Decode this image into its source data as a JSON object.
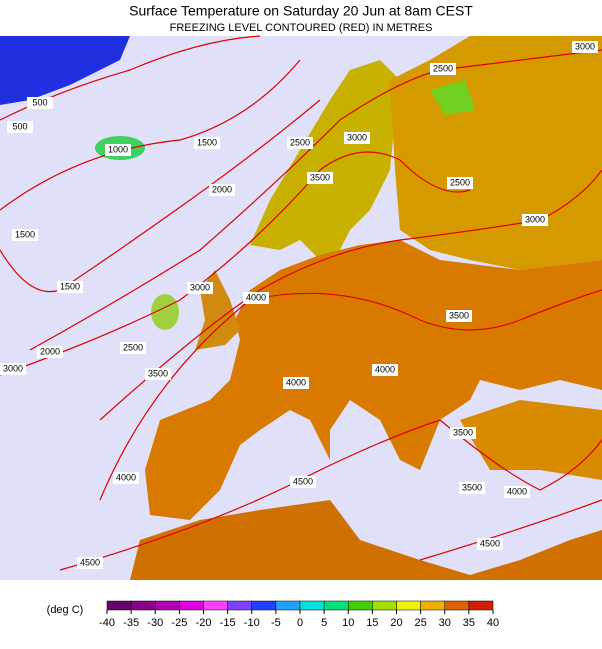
{
  "header": {
    "title": "Surface Temperature on Saturday 20 Jun at 8am CEST",
    "subtitle": "FREEZING LEVEL CONTOURED (RED) IN METRES"
  },
  "contour_labels": [
    "500",
    "500",
    "1000",
    "1500",
    "1500",
    "1500",
    "2000",
    "2000",
    "2500",
    "2500",
    "2500",
    "2500",
    "3000",
    "3000",
    "3000",
    "3000",
    "3000",
    "3500",
    "3500",
    "3500",
    "3500",
    "3500",
    "4000",
    "4000",
    "4000",
    "4000",
    "4000",
    "4500",
    "4500",
    "4500"
  ],
  "legend": {
    "unit": "(deg C)",
    "ticks": [
      -40,
      -35,
      -30,
      -25,
      -20,
      -15,
      -10,
      -5,
      0,
      5,
      10,
      15,
      20,
      25,
      30,
      35,
      40
    ],
    "colors": [
      "#6a006a",
      "#8b008b",
      "#b000b0",
      "#e000e0",
      "#ff40ff",
      "#8040ff",
      "#2040ff",
      "#20a0ff",
      "#00e0e0",
      "#00e080",
      "#40d000",
      "#a0e000",
      "#f0f000",
      "#f0b000",
      "#e06000",
      "#d02000"
    ]
  }
}
